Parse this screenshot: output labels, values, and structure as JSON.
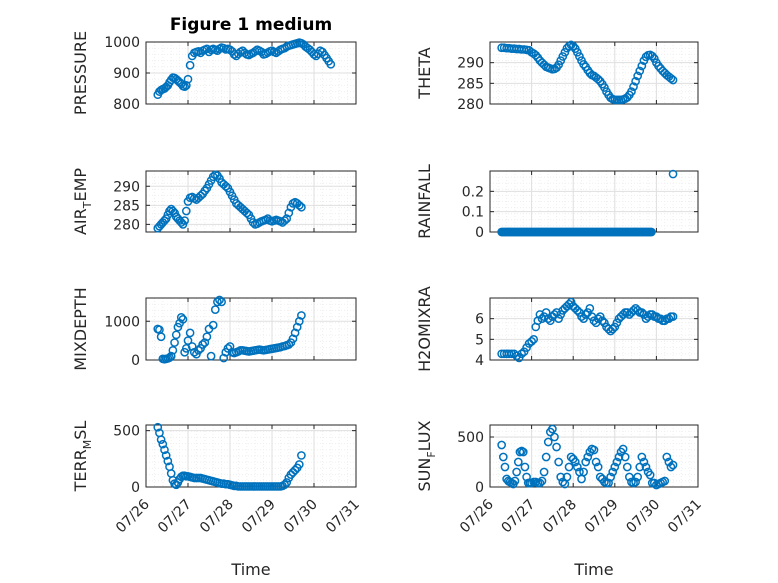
{
  "figure": {
    "title": "Figure 1 medium"
  },
  "colors": {
    "marker": "#0072BD",
    "axis": "#262626",
    "grid": "#dfdfdf",
    "minorgrid": "#efefef"
  },
  "chart_data": [
    {
      "type": "scatter",
      "ylabel": "PRESSURE",
      "ylim": [
        800,
        1000
      ],
      "yticks": [
        800,
        900,
        1000
      ],
      "xlim": [
        0,
        5
      ],
      "grid": "on",
      "marker": "circle-open",
      "x": [
        0.28,
        0.32,
        0.36,
        0.4,
        0.44,
        0.48,
        0.52,
        0.56,
        0.6,
        0.64,
        0.68,
        0.72,
        0.76,
        0.8,
        0.84,
        0.88,
        0.92,
        0.96,
        1.0,
        1.05,
        1.1,
        1.15,
        1.2,
        1.25,
        1.3,
        1.35,
        1.4,
        1.45,
        1.5,
        1.55,
        1.6,
        1.65,
        1.7,
        1.75,
        1.8,
        1.85,
        1.9,
        1.95,
        2.0,
        2.05,
        2.1,
        2.15,
        2.2,
        2.25,
        2.3,
        2.35,
        2.4,
        2.45,
        2.5,
        2.55,
        2.6,
        2.65,
        2.7,
        2.75,
        2.8,
        2.85,
        2.9,
        2.95,
        3.0,
        3.05,
        3.1,
        3.15,
        3.2,
        3.25,
        3.3,
        3.35,
        3.4,
        3.45,
        3.5,
        3.55,
        3.6,
        3.65,
        3.7,
        3.75,
        3.8,
        3.85,
        3.9,
        3.95,
        4.0,
        4.05,
        4.1,
        4.15,
        4.2,
        4.25,
        4.3,
        4.35,
        4.4
      ],
      "y": [
        830,
        840,
        845,
        848,
        850,
        855,
        860,
        870,
        878,
        885,
        884,
        880,
        875,
        870,
        865,
        858,
        856,
        860,
        880,
        925,
        955,
        965,
        968,
        970,
        965,
        972,
        975,
        978,
        968,
        975,
        978,
        975,
        972,
        978,
        982,
        980,
        976,
        978,
        975,
        970,
        960,
        955,
        962,
        968,
        972,
        965,
        960,
        958,
        962,
        965,
        970,
        975,
        972,
        968,
        960,
        962,
        966,
        970,
        972,
        968,
        965,
        970,
        975,
        978,
        980,
        985,
        988,
        990,
        992,
        994,
        996,
        998,
        996,
        992,
        985,
        980,
        975,
        968,
        960,
        955,
        962,
        972,
        968,
        958,
        948,
        938,
        928
      ]
    },
    {
      "type": "scatter",
      "ylabel": "THETA",
      "ylim": [
        280,
        295
      ],
      "yticks": [
        280,
        285,
        290
      ],
      "xlim": [
        0,
        5
      ],
      "grid": "on",
      "marker": "circle-open",
      "x": [
        0.28,
        0.34,
        0.4,
        0.46,
        0.52,
        0.58,
        0.64,
        0.7,
        0.76,
        0.82,
        0.88,
        0.94,
        1.0,
        1.05,
        1.1,
        1.15,
        1.2,
        1.25,
        1.3,
        1.35,
        1.4,
        1.45,
        1.5,
        1.55,
        1.6,
        1.65,
        1.7,
        1.75,
        1.8,
        1.85,
        1.9,
        1.95,
        2.0,
        2.05,
        2.1,
        2.15,
        2.2,
        2.25,
        2.3,
        2.35,
        2.4,
        2.45,
        2.5,
        2.55,
        2.6,
        2.65,
        2.7,
        2.75,
        2.8,
        2.85,
        2.9,
        2.95,
        3.0,
        3.05,
        3.1,
        3.15,
        3.2,
        3.25,
        3.3,
        3.35,
        3.4,
        3.45,
        3.5,
        3.55,
        3.6,
        3.65,
        3.7,
        3.75,
        3.8,
        3.85,
        3.9,
        3.95,
        4.0,
        4.05,
        4.1,
        4.15,
        4.2,
        4.25,
        4.3,
        4.35,
        4.4
      ],
      "y": [
        293.6,
        293.6,
        293.5,
        293.5,
        293.4,
        293.4,
        293.3,
        293.3,
        293.2,
        293.2,
        293.1,
        293.0,
        292.5,
        292.2,
        291.8,
        291.2,
        290.5,
        290.0,
        289.5,
        289.0,
        288.8,
        288.6,
        288.4,
        288.5,
        288.8,
        289.5,
        290.5,
        291.5,
        292.5,
        293.5,
        294.0,
        294.3,
        294.0,
        293.4,
        292.5,
        291.5,
        290.5,
        289.6,
        289.0,
        288.2,
        287.5,
        287.0,
        286.8,
        286.4,
        286.0,
        285.5,
        284.8,
        284.0,
        283.0,
        282.2,
        281.5,
        281.2,
        281.0,
        281.0,
        281.0,
        281.0,
        281.1,
        281.3,
        281.6,
        282.2,
        283.0,
        284.2,
        285.5,
        286.8,
        288.0,
        289.2,
        290.5,
        291.4,
        291.8,
        291.9,
        291.6,
        291.0,
        290.0,
        289.2,
        288.6,
        288.0,
        287.5,
        287.0,
        286.6,
        286.2,
        285.8
      ]
    },
    {
      "type": "scatter",
      "ylabel_base": "AIR",
      "ylabel_sub": "T",
      "ylabel_rest": "EMP",
      "ylim": [
        278,
        294
      ],
      "yticks": [
        280,
        285,
        290
      ],
      "xlim": [
        0,
        5
      ],
      "grid": "on",
      "marker": "circle-open",
      "x": [
        0.28,
        0.32,
        0.36,
        0.4,
        0.44,
        0.48,
        0.52,
        0.56,
        0.6,
        0.64,
        0.68,
        0.72,
        0.76,
        0.8,
        0.84,
        0.88,
        0.92,
        0.96,
        1.0,
        1.05,
        1.1,
        1.15,
        1.2,
        1.25,
        1.3,
        1.35,
        1.4,
        1.45,
        1.5,
        1.55,
        1.6,
        1.65,
        1.7,
        1.75,
        1.8,
        1.85,
        1.9,
        1.95,
        2.0,
        2.05,
        2.1,
        2.15,
        2.2,
        2.25,
        2.3,
        2.35,
        2.4,
        2.45,
        2.5,
        2.55,
        2.6,
        2.65,
        2.7,
        2.75,
        2.8,
        2.85,
        2.9,
        2.95,
        3.0,
        3.05,
        3.1,
        3.15,
        3.2,
        3.25,
        3.3,
        3.35,
        3.4,
        3.45,
        3.5,
        3.55,
        3.6,
        3.65,
        3.7
      ],
      "y": [
        279.0,
        279.5,
        280.0,
        280.5,
        281.0,
        281.5,
        282.5,
        283.5,
        284.0,
        283.5,
        283.0,
        282.0,
        281.5,
        281.0,
        280.5,
        280.0,
        281.0,
        283.5,
        286.0,
        287.0,
        287.2,
        286.8,
        286.5,
        287.0,
        287.5,
        288.0,
        288.8,
        289.5,
        290.5,
        291.5,
        292.5,
        293.0,
        292.8,
        292.0,
        291.0,
        290.5,
        290.0,
        289.5,
        288.5,
        287.5,
        286.5,
        285.5,
        285.0,
        284.5,
        284.0,
        283.5,
        283.0,
        282.5,
        281.5,
        280.5,
        280.0,
        280.2,
        280.5,
        280.8,
        281.0,
        281.2,
        281.5,
        281.0,
        280.8,
        281.0,
        281.2,
        281.0,
        280.8,
        280.5,
        281.0,
        281.5,
        283.0,
        284.5,
        285.5,
        285.8,
        285.5,
        285.0,
        284.5
      ]
    },
    {
      "type": "scatter",
      "ylabel": "RAINFALL",
      "ylim": [
        0,
        0.3
      ],
      "yticks": [
        0,
        0.1,
        0.2
      ],
      "xlim": [
        0,
        5
      ],
      "grid": "on",
      "marker": "circle-open",
      "note_density": "dense zero series across x 0.28-3.9",
      "x_dense_range": [
        0.28,
        3.9
      ],
      "y_dense_value": 0,
      "outlier": {
        "x": 4.4,
        "y": 0.285
      }
    },
    {
      "type": "scatter",
      "ylabel": "MIXDEPTH",
      "ylim": [
        0,
        1600
      ],
      "yticks": [
        0,
        1000
      ],
      "xlim": [
        0,
        5
      ],
      "grid": "on",
      "marker": "circle-open",
      "x": [
        0.28,
        0.32,
        0.36,
        0.4,
        0.44,
        0.48,
        0.52,
        0.56,
        0.6,
        0.64,
        0.68,
        0.72,
        0.76,
        0.8,
        0.84,
        0.88,
        0.92,
        0.96,
        1.0,
        1.05,
        1.1,
        1.15,
        1.2,
        1.25,
        1.3,
        1.35,
        1.4,
        1.45,
        1.5,
        1.55,
        1.6,
        1.65,
        1.7,
        1.75,
        1.8,
        1.85,
        1.9,
        1.95,
        2.0,
        2.05,
        2.1,
        2.15,
        2.2,
        2.25,
        2.3,
        2.35,
        2.4,
        2.45,
        2.5,
        2.55,
        2.6,
        2.65,
        2.7,
        2.75,
        2.8,
        2.85,
        2.9,
        2.95,
        3.0,
        3.05,
        3.1,
        3.15,
        3.2,
        3.25,
        3.3,
        3.35,
        3.4,
        3.45,
        3.5,
        3.55,
        3.6,
        3.65,
        3.7
      ],
      "y": [
        800,
        780,
        600,
        30,
        20,
        30,
        40,
        60,
        100,
        250,
        450,
        650,
        850,
        950,
        1100,
        1050,
        200,
        300,
        500,
        700,
        350,
        200,
        150,
        250,
        300,
        400,
        450,
        600,
        800,
        100,
        900,
        1300,
        1500,
        1550,
        1500,
        50,
        200,
        300,
        350,
        200,
        180,
        200,
        220,
        250,
        250,
        240,
        230,
        220,
        230,
        240,
        250,
        260,
        270,
        260,
        250,
        260,
        270,
        280,
        290,
        300,
        310,
        320,
        330,
        350,
        360,
        380,
        400,
        450,
        550,
        700,
        850,
        1000,
        1150
      ]
    },
    {
      "type": "scatter",
      "ylabel": "H2OMIXRA",
      "ylim": [
        4,
        7
      ],
      "yticks": [
        4,
        5,
        6
      ],
      "xlim": [
        0,
        5
      ],
      "grid": "on",
      "marker": "circle-open",
      "x": [
        0.28,
        0.34,
        0.4,
        0.46,
        0.52,
        0.58,
        0.64,
        0.7,
        0.76,
        0.82,
        0.88,
        0.94,
        1.0,
        1.05,
        1.1,
        1.15,
        1.2,
        1.25,
        1.3,
        1.35,
        1.4,
        1.45,
        1.5,
        1.55,
        1.6,
        1.65,
        1.7,
        1.75,
        1.8,
        1.85,
        1.9,
        1.95,
        2.0,
        2.05,
        2.1,
        2.15,
        2.2,
        2.25,
        2.3,
        2.35,
        2.4,
        2.45,
        2.5,
        2.55,
        2.6,
        2.65,
        2.7,
        2.75,
        2.8,
        2.85,
        2.9,
        2.95,
        3.0,
        3.05,
        3.1,
        3.15,
        3.2,
        3.25,
        3.3,
        3.35,
        3.4,
        3.45,
        3.5,
        3.55,
        3.6,
        3.65,
        3.7,
        3.75,
        3.8,
        3.85,
        3.9,
        3.95,
        4.0,
        4.05,
        4.1,
        4.15,
        4.2,
        4.25,
        4.3,
        4.35,
        4.4
      ],
      "y": [
        4.3,
        4.3,
        4.3,
        4.3,
        4.3,
        4.3,
        4.2,
        4.1,
        4.3,
        4.4,
        4.6,
        4.8,
        4.9,
        5.0,
        5.6,
        5.9,
        6.2,
        6.0,
        6.1,
        6.3,
        6.0,
        5.9,
        6.1,
        6.2,
        6.3,
        6.0,
        6.2,
        6.4,
        6.5,
        6.6,
        6.7,
        6.8,
        6.6,
        6.5,
        6.4,
        6.3,
        6.1,
        6.0,
        6.2,
        6.3,
        6.5,
        6.1,
        5.9,
        5.8,
        6.0,
        6.1,
        5.9,
        5.8,
        5.6,
        5.5,
        5.4,
        5.5,
        5.6,
        5.8,
        6.0,
        6.1,
        6.2,
        6.3,
        6.3,
        6.2,
        6.3,
        6.4,
        6.5,
        6.4,
        6.3,
        6.3,
        6.2,
        6.0,
        6.1,
        6.2,
        6.2,
        6.1,
        6.1,
        6.0,
        6.0,
        5.9,
        5.9,
        6.0,
        6.0,
        6.1,
        6.1
      ]
    },
    {
      "type": "scatter",
      "ylabel_base": "TERR",
      "ylabel_sub": "M",
      "ylabel_rest": "SL",
      "ylim": [
        0,
        550
      ],
      "yticks": [
        0,
        500
      ],
      "xlim": [
        0,
        5
      ],
      "grid": "on",
      "marker": "circle-open",
      "xlabel": "Time",
      "xticklabels": [
        "07/26",
        "07/27",
        "07/28",
        "07/29",
        "07/30",
        "07/31"
      ],
      "x": [
        0.28,
        0.32,
        0.36,
        0.4,
        0.44,
        0.48,
        0.52,
        0.56,
        0.6,
        0.64,
        0.68,
        0.72,
        0.76,
        0.8,
        0.84,
        0.88,
        0.92,
        0.96,
        1.0,
        1.05,
        1.1,
        1.15,
        1.2,
        1.25,
        1.3,
        1.35,
        1.4,
        1.45,
        1.5,
        1.55,
        1.6,
        1.65,
        1.7,
        1.75,
        1.8,
        1.85,
        1.9,
        1.95,
        2.0,
        2.05,
        2.1,
        2.15,
        2.2,
        2.25,
        2.3,
        2.35,
        2.4,
        2.45,
        2.5,
        2.55,
        2.6,
        2.65,
        2.7,
        2.75,
        2.8,
        2.85,
        2.9,
        2.95,
        3.0,
        3.05,
        3.1,
        3.15,
        3.2,
        3.25,
        3.3,
        3.35,
        3.4,
        3.45,
        3.5,
        3.55,
        3.6,
        3.65,
        3.7
      ],
      "y": [
        530,
        480,
        420,
        380,
        330,
        280,
        230,
        180,
        120,
        60,
        30,
        20,
        40,
        70,
        90,
        100,
        100,
        95,
        95,
        90,
        85,
        80,
        80,
        80,
        80,
        75,
        70,
        65,
        60,
        55,
        50,
        45,
        40,
        35,
        30,
        30,
        25,
        25,
        20,
        15,
        10,
        10,
        5,
        5,
        5,
        5,
        5,
        5,
        5,
        5,
        5,
        5,
        5,
        5,
        5,
        5,
        5,
        5,
        5,
        5,
        5,
        5,
        5,
        10,
        20,
        40,
        80,
        110,
        130,
        150,
        170,
        200,
        280
      ]
    },
    {
      "type": "scatter",
      "ylabel_base": "SUN",
      "ylabel_sub": "F",
      "ylabel_rest": "LUX",
      "ylim": [
        0,
        620
      ],
      "yticks": [
        0,
        500
      ],
      "xlim": [
        0,
        5
      ],
      "grid": "on",
      "marker": "circle-open",
      "xlabel": "Time",
      "xticklabels": [
        "07/26",
        "07/27",
        "07/28",
        "07/29",
        "07/30",
        "07/31"
      ],
      "x": [
        0.28,
        0.32,
        0.36,
        0.4,
        0.44,
        0.48,
        0.52,
        0.56,
        0.6,
        0.64,
        0.68,
        0.72,
        0.76,
        0.8,
        0.84,
        0.88,
        0.92,
        0.96,
        1.0,
        1.05,
        1.1,
        1.15,
        1.2,
        1.25,
        1.3,
        1.35,
        1.4,
        1.45,
        1.5,
        1.55,
        1.6,
        1.65,
        1.7,
        1.75,
        1.8,
        1.85,
        1.9,
        1.95,
        2.0,
        2.05,
        2.1,
        2.15,
        2.2,
        2.25,
        2.3,
        2.35,
        2.4,
        2.45,
        2.5,
        2.55,
        2.6,
        2.65,
        2.7,
        2.75,
        2.8,
        2.85,
        2.9,
        2.95,
        3.0,
        3.05,
        3.1,
        3.15,
        3.2,
        3.25,
        3.3,
        3.35,
        3.4,
        3.45,
        3.5,
        3.55,
        3.6,
        3.65,
        3.7,
        3.75,
        3.8,
        3.85,
        3.9,
        3.95,
        4.0,
        4.05,
        4.1,
        4.15,
        4.2,
        4.25,
        4.3,
        4.35,
        4.4
      ],
      "y": [
        420,
        300,
        200,
        80,
        60,
        50,
        40,
        30,
        60,
        150,
        250,
        350,
        360,
        350,
        200,
        100,
        40,
        40,
        40,
        50,
        50,
        40,
        40,
        60,
        150,
        300,
        450,
        550,
        580,
        500,
        400,
        250,
        100,
        50,
        30,
        100,
        200,
        300,
        280,
        250,
        200,
        150,
        80,
        150,
        250,
        300,
        350,
        380,
        370,
        250,
        200,
        100,
        80,
        50,
        40,
        40,
        100,
        150,
        200,
        250,
        300,
        350,
        380,
        300,
        200,
        100,
        50,
        40,
        50,
        100,
        200,
        300,
        250,
        200,
        150,
        120,
        40,
        40,
        20,
        30,
        40,
        50,
        60,
        300,
        250,
        200,
        220
      ]
    }
  ]
}
